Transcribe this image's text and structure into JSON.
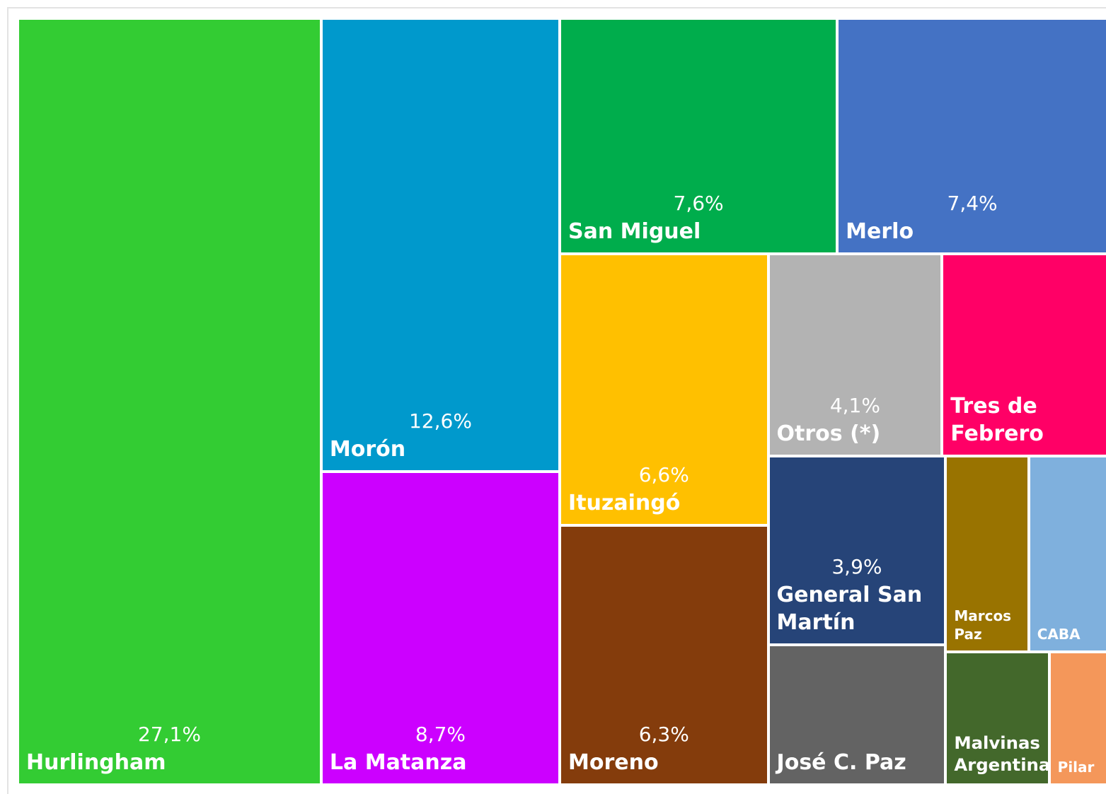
{
  "chart_data": {
    "type": "treemap",
    "categories": [
      "Hurlingham",
      "Morón",
      "La Matanza",
      "San Miguel",
      "Merlo",
      "Ituzaingó",
      "Moreno",
      "Otros (*)",
      "Tres de Febrero",
      "General San Martín",
      "José C. Paz",
      "Marcos Paz",
      "CABA",
      "Malvinas Argentinas",
      "Pilar"
    ],
    "values": [
      27.1,
      12.6,
      8.7,
      7.6,
      7.4,
      6.6,
      6.3,
      4.1,
      3.9,
      3.9,
      2.9,
      1.9,
      1.8,
      1.6,
      0.9
    ],
    "value_labels": [
      "27,1%",
      "12,6%",
      "8,7%",
      "7,6%",
      "7,4%",
      "6,6%",
      "6,3%",
      "4,1%",
      null,
      "3,9%",
      null,
      null,
      null,
      null,
      null
    ],
    "colors": [
      "#33cc33",
      "#0099cc",
      "#cc00ff",
      "#00ad4c",
      "#4472c4",
      "#ffc000",
      "#843c0c",
      "#b3b3b3",
      "#ff0066",
      "#264478",
      "#636363",
      "#997300",
      "#7fb0dd",
      "#43682b",
      "#f4975a"
    ]
  }
}
